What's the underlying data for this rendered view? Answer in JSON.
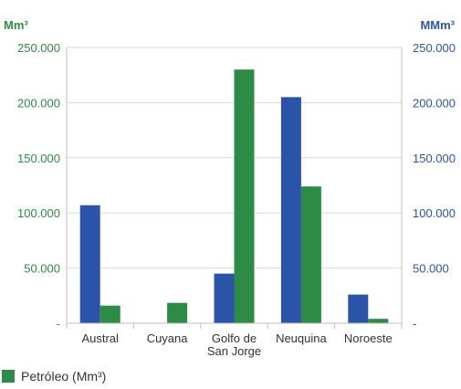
{
  "chart_data": {
    "type": "bar",
    "categories": [
      [
        "Austral"
      ],
      [
        "Cuyana"
      ],
      [
        "Golfo de",
        "San Jorge"
      ],
      [
        "Neuquina"
      ],
      [
        "Noroeste"
      ]
    ],
    "left_axis": {
      "unit_label": "Mm³",
      "ticks": [
        "-",
        "50.000",
        "100.000",
        "150.000",
        "200.000",
        "250.000"
      ],
      "range": [
        0,
        250000
      ],
      "color": "#2e8b46"
    },
    "right_axis": {
      "unit_label": "MMm³",
      "ticks": [
        "-",
        "50.000",
        "100.000",
        "150.000",
        "200.000",
        "250.000"
      ],
      "range": [
        0,
        250000
      ],
      "color": "#2b54a8"
    },
    "series": [
      {
        "axis": "right",
        "color": "#2b54a8",
        "values": [
          107000,
          0,
          45000,
          205000,
          26000
        ]
      },
      {
        "name": "Petróleo (Mm³)",
        "axis": "left",
        "color": "#2e8b46",
        "values": [
          16000,
          18500,
          230000,
          124000,
          4000
        ]
      }
    ],
    "grid": true
  }
}
